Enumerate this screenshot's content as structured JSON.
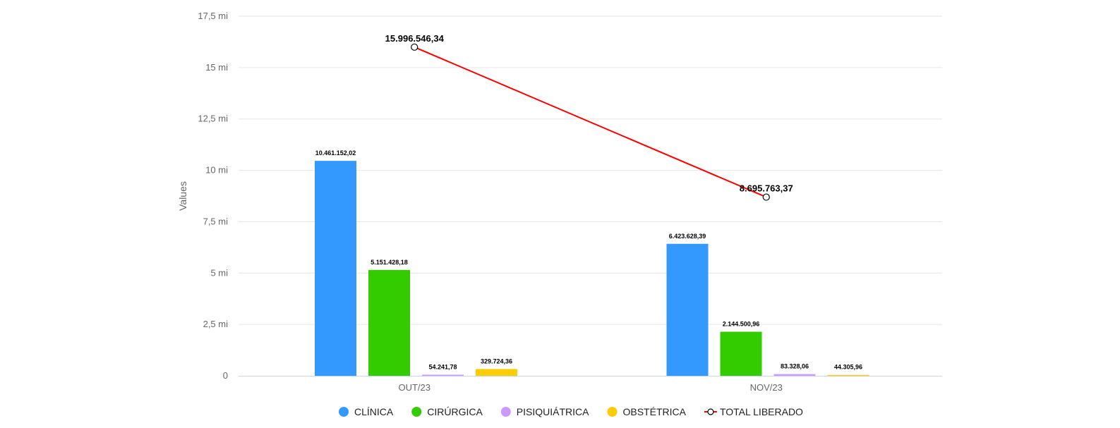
{
  "chart_data": {
    "type": "bar",
    "categories": [
      "OUT/23",
      "NOV/23"
    ],
    "series": [
      {
        "name": "CLÍNICA",
        "type": "bar",
        "color": "#3399ff",
        "values": [
          10461152.02,
          6423628.39
        ],
        "labels": [
          "10.461.152,02",
          "6.423.628,39"
        ]
      },
      {
        "name": "CIRÚRGICA",
        "type": "bar",
        "color": "#33cc00",
        "values": [
          5151428.18,
          2144500.96
        ],
        "labels": [
          "5.151.428,18",
          "2.144.500,96"
        ]
      },
      {
        "name": "PISIQUIÁTRICA",
        "type": "bar",
        "color": "#cc99ff",
        "values": [
          54241.78,
          83328.06
        ],
        "labels": [
          "54.241,78",
          "83.328,06"
        ]
      },
      {
        "name": "OBSTÉTRICA",
        "type": "bar",
        "color": "#ffcc00",
        "values": [
          329724.36,
          44305.96
        ],
        "labels": [
          "329.724,36",
          "44.305,96"
        ]
      },
      {
        "name": "TOTAL LIBERADO",
        "type": "line",
        "color": "#ff0000",
        "values": [
          15996546.34,
          8695763.37
        ],
        "labels": [
          "15.996.546,34",
          "8.695.763,37"
        ]
      }
    ],
    "ylabel": "Values",
    "xlabel": "",
    "ylim": [
      0,
      17500000
    ],
    "yticks": [
      {
        "value": 0,
        "label": "0"
      },
      {
        "value": 2500000,
        "label": "2,5 mi"
      },
      {
        "value": 5000000,
        "label": "5 mi"
      },
      {
        "value": 7500000,
        "label": "7,5 mi"
      },
      {
        "value": 10000000,
        "label": "10 mi"
      },
      {
        "value": 12500000,
        "label": "12,5 mi"
      },
      {
        "value": 15000000,
        "label": "15 mi"
      },
      {
        "value": 17500000,
        "label": "17,5 mi"
      }
    ],
    "grid": true,
    "legend_position": "bottom-center",
    "colors": {
      "grid": "#e6e6e6",
      "axis": "#ccd6eb",
      "marker_fill": "#ffffff",
      "marker_stroke": "#000000"
    }
  }
}
